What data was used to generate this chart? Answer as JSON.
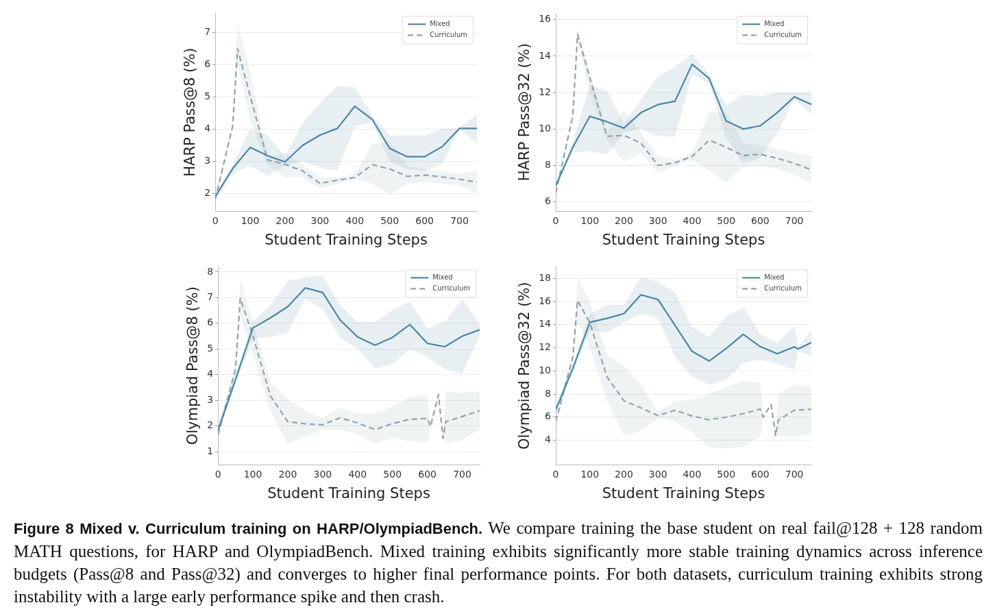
{
  "chart_data": [
    {
      "type": "line",
      "xlabel": "Student Training Steps",
      "ylabel": "HARP Pass@8 (%)",
      "xlim": [
        0,
        750
      ],
      "xticks": [
        0,
        100,
        200,
        300,
        400,
        500,
        600,
        700
      ],
      "ylim": [
        1.45,
        7.6
      ],
      "yticks": [
        2,
        3,
        4,
        5,
        6,
        7
      ],
      "grid": "y",
      "legend": "top right",
      "series": [
        {
          "name": "Mixed",
          "color": "#4a86a3",
          "line_style": "solid",
          "x": [
            0,
            50,
            100,
            150,
            200,
            250,
            300,
            350,
            400,
            450,
            500,
            550,
            600,
            650,
            700,
            750
          ],
          "values": [
            1.9,
            2.77,
            3.43,
            3.17,
            2.98,
            3.49,
            3.81,
            4.02,
            4.71,
            4.3,
            3.4,
            3.14,
            3.14,
            3.45,
            4.02,
            4.02
          ],
          "lower": [
            1.8,
            2.6,
            2.85,
            2.55,
            2.85,
            3.0,
            2.8,
            2.7,
            4.1,
            4.2,
            3.0,
            2.75,
            2.7,
            2.9,
            4.0,
            3.55
          ],
          "upper": [
            1.95,
            2.9,
            4.0,
            3.8,
            3.15,
            4.2,
            4.8,
            5.35,
            5.3,
            4.4,
            3.8,
            3.8,
            3.8,
            4.0,
            4.05,
            4.45
          ]
        },
        {
          "name": "Curriculum",
          "color": "#8ea3ad",
          "line_style": "dashed",
          "x": [
            0,
            50,
            64,
            100,
            150,
            200,
            250,
            300,
            350,
            400,
            450,
            500,
            550,
            600,
            650,
            700,
            750
          ],
          "values": [
            1.81,
            4.1,
            6.5,
            5.03,
            3.04,
            2.9,
            2.7,
            2.31,
            2.41,
            2.49,
            2.89,
            2.76,
            2.53,
            2.57,
            2.51,
            2.44,
            2.35
          ],
          "lower": [
            1.7,
            4.0,
            6.0,
            4.3,
            2.9,
            2.5,
            2.5,
            2.15,
            2.3,
            2.45,
            2.3,
            1.95,
            2.3,
            2.35,
            2.3,
            2.25,
            2.0
          ],
          "upper": [
            1.9,
            4.2,
            7.3,
            5.8,
            3.1,
            3.25,
            2.9,
            2.5,
            2.5,
            2.6,
            3.55,
            3.6,
            2.85,
            2.75,
            2.7,
            2.6,
            2.7
          ]
        }
      ]
    },
    {
      "type": "line",
      "xlabel": "Student Training Steps",
      "ylabel": "HARP Pass@32 (%)",
      "xlim": [
        0,
        750
      ],
      "xticks": [
        0,
        100,
        200,
        300,
        400,
        500,
        600,
        700
      ],
      "ylim": [
        5.5,
        16.35
      ],
      "yticks": [
        6,
        8,
        10,
        12,
        14,
        16
      ],
      "grid": "y",
      "legend": "top right",
      "series": [
        {
          "name": "Mixed",
          "color": "#4a86a3",
          "line_style": "solid",
          "x": [
            0,
            50,
            100,
            150,
            200,
            250,
            300,
            350,
            400,
            450,
            500,
            550,
            600,
            650,
            700,
            750
          ],
          "values": [
            6.89,
            9.0,
            10.7,
            10.4,
            10.05,
            10.9,
            11.34,
            11.53,
            13.55,
            12.78,
            10.44,
            10.0,
            10.18,
            10.9,
            11.77,
            11.35
          ],
          "lower": [
            6.8,
            8.7,
            8.8,
            8.6,
            9.8,
            10.0,
            9.6,
            9.6,
            13.0,
            12.5,
            9.5,
            8.1,
            8.4,
            9.8,
            11.6,
            10.8
          ],
          "upper": [
            7.0,
            9.3,
            12.4,
            12.1,
            10.3,
            11.6,
            12.9,
            13.4,
            14.1,
            13.0,
            11.3,
            11.9,
            11.8,
            12.0,
            12.0,
            12.0
          ]
        },
        {
          "name": "Curriculum",
          "color": "#8ea3ad",
          "line_style": "dashed",
          "x": [
            0,
            50,
            64,
            100,
            150,
            200,
            250,
            300,
            350,
            400,
            450,
            500,
            550,
            600,
            650,
            700,
            750
          ],
          "values": [
            6.5,
            10.7,
            15.2,
            12.8,
            9.6,
            9.65,
            9.23,
            8.0,
            8.15,
            8.49,
            9.39,
            9.0,
            8.54,
            8.62,
            8.39,
            8.12,
            7.76
          ],
          "lower": [
            6.4,
            10.5,
            14.9,
            12.0,
            9.4,
            8.2,
            8.7,
            7.6,
            8.0,
            8.3,
            7.7,
            7.1,
            7.9,
            8.0,
            7.8,
            7.5,
            7.0
          ],
          "upper": [
            6.6,
            10.9,
            15.5,
            13.2,
            9.8,
            11.0,
            9.8,
            8.5,
            8.3,
            8.7,
            10.9,
            10.9,
            9.2,
            9.1,
            8.9,
            8.7,
            8.5
          ]
        }
      ]
    },
    {
      "type": "line",
      "xlabel": "Student Training Steps",
      "ylabel": "Olympiad Pass@8 (%)",
      "xlim": [
        0,
        750
      ],
      "xticks": [
        0,
        100,
        200,
        300,
        400,
        500,
        600,
        700
      ],
      "ylim": [
        0.5,
        8.2
      ],
      "yticks": [
        1,
        2,
        3,
        4,
        5,
        6,
        7,
        8
      ],
      "grid": "y",
      "legend": "top right",
      "series": [
        {
          "name": "Mixed",
          "color": "#4a86a3",
          "line_style": "solid",
          "x": [
            0,
            50,
            100,
            150,
            200,
            250,
            300,
            350,
            400,
            450,
            500,
            550,
            600,
            650,
            700,
            750
          ],
          "values": [
            1.83,
            3.8,
            5.82,
            6.21,
            6.65,
            7.38,
            7.2,
            6.13,
            5.47,
            5.15,
            5.45,
            5.95,
            5.22,
            5.09,
            5.5,
            5.75
          ],
          "lower": [
            1.7,
            3.6,
            5.45,
            5.45,
            5.65,
            6.95,
            6.55,
            5.45,
            5.0,
            4.25,
            4.4,
            5.0,
            4.7,
            4.2,
            4.05,
            5.5
          ],
          "upper": [
            1.95,
            4.0,
            6.1,
            6.7,
            7.65,
            7.8,
            7.85,
            6.7,
            6.05,
            6.05,
            6.5,
            6.85,
            5.8,
            6.05,
            6.95,
            5.95
          ]
        },
        {
          "name": "Curriculum",
          "color": "#8ea3ad",
          "line_style": "dashed",
          "x": [
            0,
            50,
            64,
            100,
            150,
            200,
            250,
            300,
            350,
            400,
            450,
            500,
            550,
            600,
            609,
            632,
            645,
            653,
            700,
            750
          ],
          "values": [
            1.66,
            4.2,
            6.97,
            5.52,
            3.18,
            2.17,
            2.09,
            2.05,
            2.32,
            2.12,
            1.86,
            2.1,
            2.26,
            2.3,
            1.98,
            3.22,
            1.52,
            2.17,
            2.37,
            2.6
          ],
          "lower": [
            1.4,
            4.0,
            6.3,
            4.8,
            2.6,
            1.3,
            1.6,
            1.85,
            1.85,
            1.7,
            1.3,
            1.55,
            1.4,
            1.4,
            1.9,
            3.15,
            1.45,
            1.35,
            1.45,
            1.85
          ],
          "upper": [
            1.9,
            4.4,
            7.7,
            6.1,
            3.7,
            3.05,
            2.6,
            2.3,
            2.7,
            2.5,
            2.5,
            2.75,
            3.15,
            3.25,
            2.05,
            3.3,
            1.6,
            3.35,
            3.3,
            3.35
          ]
        }
      ]
    },
    {
      "type": "line",
      "xlabel": "Student Training Steps",
      "ylabel": "Olympiad Pass@32 (%)",
      "xlim": [
        0,
        750
      ],
      "xticks": [
        0,
        100,
        200,
        300,
        400,
        500,
        600,
        700
      ],
      "ylim": [
        1.9,
        19
      ],
      "yticks": [
        4,
        6,
        8,
        10,
        12,
        14,
        16,
        18
      ],
      "grid": "y",
      "legend": "top right",
      "series": [
        {
          "name": "Mixed",
          "color": "#4a86a3",
          "line_style": "solid",
          "x": [
            0,
            50,
            100,
            150,
            200,
            250,
            300,
            350,
            400,
            450,
            500,
            550,
            600,
            650,
            700,
            711,
            750
          ],
          "values": [
            6.64,
            10.2,
            14.2,
            14.54,
            14.95,
            16.58,
            16.17,
            13.93,
            11.69,
            10.86,
            11.94,
            13.16,
            12.1,
            11.49,
            12.08,
            11.9,
            12.45
          ],
          "lower": [
            6.4,
            9.8,
            13.5,
            13.3,
            14.2,
            14.9,
            14.6,
            11.2,
            9.5,
            8.8,
            9.2,
            10.7,
            11.0,
            10.6,
            10.1,
            11.7,
            11.3
          ],
          "upper": [
            6.9,
            10.6,
            14.9,
            15.7,
            15.7,
            18.1,
            17.7,
            16.8,
            13.8,
            12.9,
            14.7,
            15.5,
            13.2,
            12.4,
            13.9,
            12.1,
            13.5
          ]
        },
        {
          "name": "Curriculum",
          "color": "#8ea3ad",
          "line_style": "dashed",
          "x": [
            0,
            50,
            64,
            100,
            150,
            200,
            250,
            300,
            350,
            400,
            450,
            500,
            550,
            600,
            609,
            632,
            645,
            653,
            700,
            750
          ],
          "values": [
            5.63,
            11.2,
            16.1,
            14.17,
            9.5,
            7.42,
            6.8,
            6.14,
            6.6,
            6.1,
            5.77,
            6.0,
            6.3,
            6.7,
            6.0,
            7.1,
            4.4,
            5.73,
            6.6,
            6.68
          ],
          "lower": [
            5.0,
            10.8,
            14.3,
            12.0,
            7.4,
            4.4,
            4.8,
            5.9,
            5.6,
            4.7,
            3.4,
            3.3,
            3.4,
            4.4,
            5.9,
            7.0,
            4.3,
            4.4,
            4.3,
            4.6
          ],
          "upper": [
            6.0,
            11.6,
            18.0,
            16.0,
            11.4,
            10.4,
            8.8,
            6.5,
            7.4,
            7.5,
            8.0,
            8.6,
            9.1,
            9.0,
            6.1,
            7.2,
            4.5,
            8.0,
            8.8,
            8.7
          ]
        }
      ]
    },
    {
      "type": "other",
      "title": "Figure 8  Mixed v. Curriculum training on HARP/OlympiadBench.",
      "annotations": [
        "We compare training the base student on real fail@128 + 128 random MATH questions, for HARP and OlympiadBench. Mixed training exhibits significantly more stable training dynamics across inference budgets (Pass@8 and Pass@32) and converges to higher final performance points. For both datasets, curriculum training exhibits strong instability with a large early performance spike and then crash."
      ]
    }
  ]
}
